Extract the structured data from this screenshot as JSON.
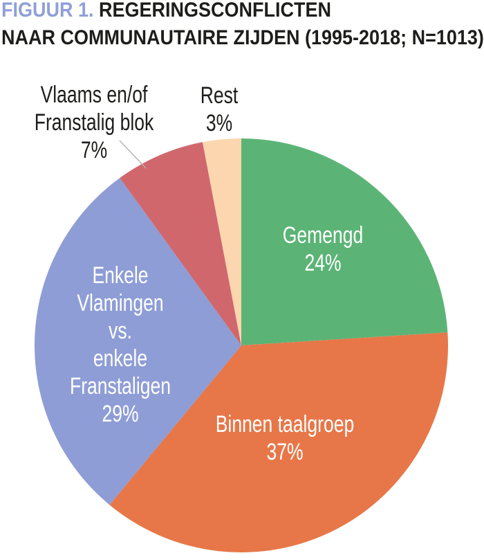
{
  "figure": {
    "title_prefix": "FIGUUR 1.",
    "title_rest": "REGERINGSCONFLICTEN",
    "title_line2": "NAAR COMMUNAUTAIRE ZIJDEN (1995-2018; N=1013)"
  },
  "colors": {
    "title_prefix": "#8F9FD8",
    "text": "#1D1D1B",
    "inside_label_text": "#FFFFFF",
    "leader_line": "#B5B5B5",
    "background": "#FFFFFF"
  },
  "chart_data": {
    "type": "pie",
    "title": "FIGUUR 1. REGERINGSCONFLICTEN NAAR COMMUNAUTAIRE ZIJDEN (1995-2018; N=1013)",
    "sample_size_label": "N=1013",
    "period_label": "1995-2018",
    "start_angle_deg_from_top": 0,
    "direction": "clockwise",
    "legend_position": "none",
    "slices": [
      {
        "label": "Gemengd",
        "value_pct": 24,
        "color": "#5BB476",
        "label_lines": [
          "Gemengd"
        ],
        "pct_label": "24%",
        "label_placement": "inside"
      },
      {
        "label": "Binnen taalgroep",
        "value_pct": 37,
        "color": "#E77748",
        "label_lines": [
          "Binnen taalgroep"
        ],
        "pct_label": "37%",
        "label_placement": "inside"
      },
      {
        "label": "Enkele Vlamingen vs. enkele Franstaligen",
        "value_pct": 29,
        "color": "#8E9DD5",
        "label_lines": [
          "Enkele",
          "Vlamingen",
          "vs.",
          "enkele",
          "Franstaligen"
        ],
        "pct_label": "29%",
        "label_placement": "inside"
      },
      {
        "label": "Vlaams en/of Franstalig blok",
        "value_pct": 7,
        "color": "#D0676D",
        "label_lines": [
          "Vlaams en/of",
          "Franstalig blok"
        ],
        "pct_label": "7%",
        "label_placement": "outside"
      },
      {
        "label": "Rest",
        "value_pct": 3,
        "color": "#FBD6AE",
        "label_lines": [
          "Rest"
        ],
        "pct_label": "3%",
        "label_placement": "outside"
      }
    ]
  }
}
